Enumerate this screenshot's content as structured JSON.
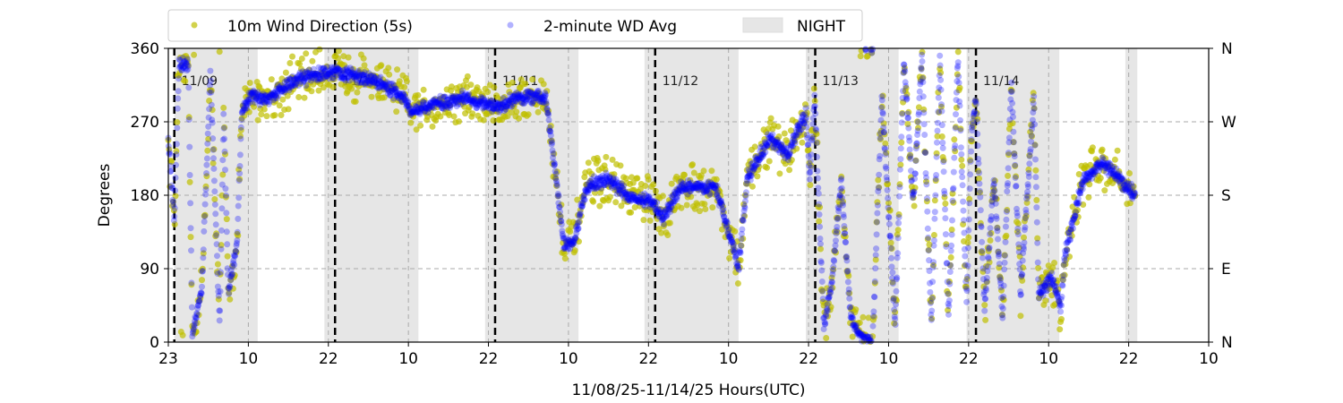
{
  "chart_data": {
    "type": "scatter",
    "title": "",
    "xlabel": "11/08/25-11/14/25  Hours(UTC)",
    "ylabel": "Degrees",
    "xlim_hours": [
      0,
      156
    ],
    "ylim": [
      0,
      360
    ],
    "x_ticks": [
      {
        "h": 0,
        "label": "23"
      },
      {
        "h": 12,
        "label": "10"
      },
      {
        "h": 24,
        "label": "22"
      },
      {
        "h": 36,
        "label": "10"
      },
      {
        "h": 48,
        "label": "22"
      },
      {
        "h": 60,
        "label": "10"
      },
      {
        "h": 72,
        "label": "22"
      },
      {
        "h": 84,
        "label": "10"
      },
      {
        "h": 96,
        "label": "22"
      },
      {
        "h": 108,
        "label": "10"
      },
      {
        "h": 120,
        "label": "22"
      },
      {
        "h": 132,
        "label": "10"
      },
      {
        "h": 144,
        "label": "22"
      },
      {
        "h": 156,
        "label": "10"
      }
    ],
    "y_ticks": [
      0,
      90,
      180,
      270,
      360
    ],
    "y_ticks_right": [
      {
        "v": 0,
        "label": "N"
      },
      {
        "v": 90,
        "label": "E"
      },
      {
        "v": 180,
        "label": "S"
      },
      {
        "v": 270,
        "label": "W"
      },
      {
        "v": 360,
        "label": "N"
      }
    ],
    "grid_y": [
      90,
      180,
      270
    ],
    "legend": {
      "placement": "top-center-outside",
      "entries": [
        {
          "label": "10m Wind Direction (5s)",
          "color": "#bfbf00"
        },
        {
          "label": "2-minute WD Avg",
          "color": "#0000ff"
        },
        {
          "label": "NIGHT",
          "color": "#e6e6e6"
        }
      ]
    },
    "night_periods_hours": [
      [
        0.9,
        13.4
      ],
      [
        23.4,
        37.5
      ],
      [
        47.5,
        61.5
      ],
      [
        71.4,
        85.5
      ],
      [
        95.6,
        109.5
      ],
      [
        119.7,
        133.6
      ],
      [
        143.5,
        145.3
      ]
    ],
    "midnights": [
      {
        "h": 0.9,
        "label": "11/09"
      },
      {
        "h": 25.0,
        "label": "11/10"
      },
      {
        "h": 49.0,
        "label": "11/11"
      },
      {
        "h": 73.0,
        "label": "11/12"
      },
      {
        "h": 97.0,
        "label": "11/13"
      },
      {
        "h": 121.1,
        "label": "11/14"
      }
    ],
    "series": [
      {
        "name": "10m Wind Direction (5s)",
        "color": "#bfbf00",
        "spread_deg": 35
      },
      {
        "name": "2-minute WD Avg",
        "color": "#0000ff",
        "spread_deg": 10
      }
    ],
    "approx_trace_hours_deg": [
      [
        0,
        250
      ],
      [
        0.9,
        150
      ],
      [
        1.6,
        340
      ],
      [
        3.0,
        340
      ],
      [
        3.6,
        10
      ],
      [
        5.0,
        60
      ],
      [
        6.3,
        330
      ],
      [
        7.7,
        20
      ],
      [
        8.3,
        280
      ],
      [
        9.0,
        60
      ],
      [
        10.3,
        120
      ],
      [
        11.0,
        280
      ],
      [
        12.3,
        300
      ],
      [
        15.0,
        300
      ],
      [
        19.1,
        320
      ],
      [
        23.1,
        330
      ],
      [
        25.8,
        330
      ],
      [
        31.1,
        320
      ],
      [
        35.2,
        300
      ],
      [
        36.5,
        280
      ],
      [
        39.2,
        290
      ],
      [
        44.6,
        300
      ],
      [
        47.9,
        290
      ],
      [
        49.9,
        290
      ],
      [
        52.6,
        300
      ],
      [
        56.6,
        300
      ],
      [
        58.0,
        210
      ],
      [
        59.3,
        120
      ],
      [
        60.7,
        120
      ],
      [
        62.7,
        190
      ],
      [
        66.0,
        200
      ],
      [
        68.7,
        180
      ],
      [
        72.8,
        170
      ],
      [
        74.1,
        150
      ],
      [
        76.8,
        190
      ],
      [
        82.1,
        190
      ],
      [
        84.2,
        130
      ],
      [
        85.5,
        90
      ],
      [
        86.8,
        200
      ],
      [
        90.2,
        250
      ],
      [
        92.9,
        230
      ],
      [
        95.6,
        280
      ],
      [
        96.2,
        200
      ],
      [
        96.9,
        300
      ],
      [
        98.3,
        20
      ],
      [
        99.6,
        80
      ],
      [
        100.9,
        200
      ],
      [
        102.3,
        30
      ],
      [
        103.6,
        10
      ],
      [
        105.6,
        0
      ],
      [
        107.0,
        300
      ],
      [
        108.3,
        120
      ],
      [
        109.0,
        20
      ],
      [
        110.3,
        350
      ],
      [
        111.7,
        170
      ],
      [
        113.0,
        350
      ],
      [
        114.4,
        20
      ],
      [
        115.7,
        350
      ],
      [
        117.0,
        30
      ],
      [
        118.4,
        350
      ],
      [
        119.7,
        50
      ],
      [
        120.4,
        250
      ],
      [
        121.1,
        300
      ],
      [
        122.4,
        40
      ],
      [
        123.8,
        200
      ],
      [
        125.1,
        30
      ],
      [
        126.4,
        320
      ],
      [
        127.8,
        60
      ],
      [
        129.8,
        300
      ],
      [
        130.5,
        60
      ],
      [
        132.5,
        80
      ],
      [
        133.8,
        40
      ],
      [
        134.5,
        110
      ],
      [
        137.2,
        200
      ],
      [
        139.9,
        220
      ],
      [
        142.6,
        200
      ],
      [
        145.0,
        180
      ]
    ]
  }
}
